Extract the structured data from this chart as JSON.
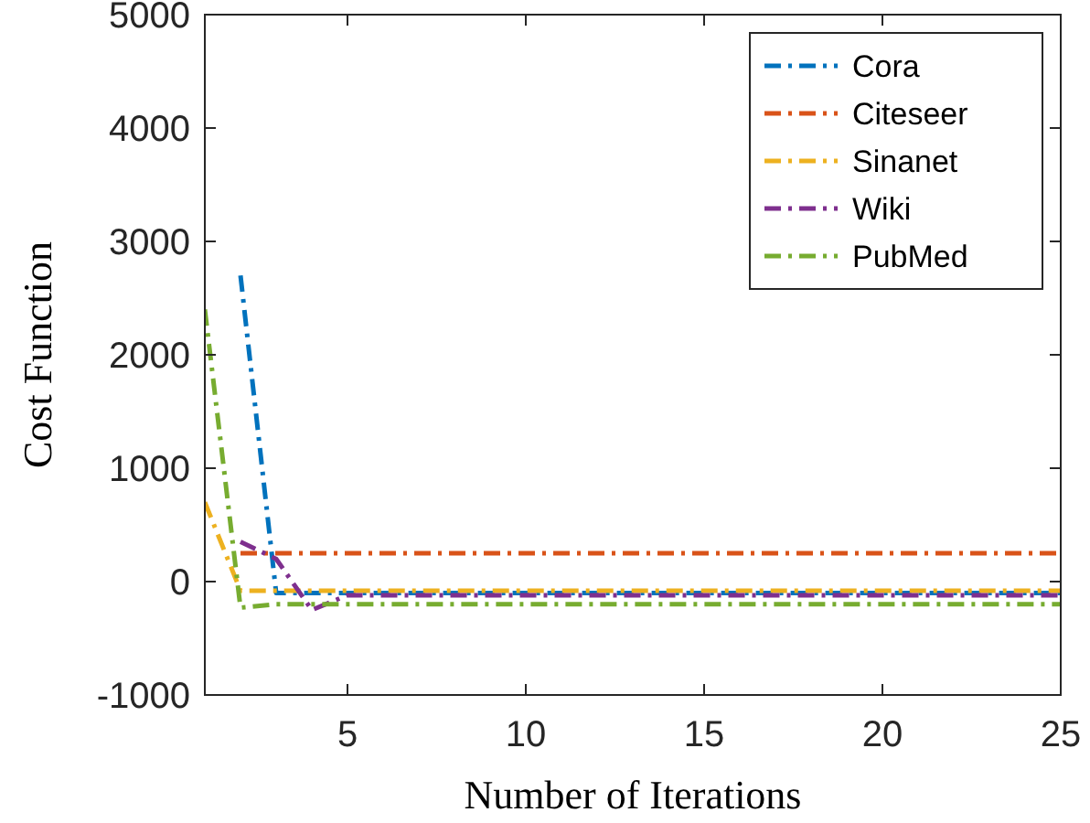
{
  "chart_data": {
    "type": "line",
    "xlabel": "Number of Iterations",
    "ylabel": "Cost Function",
    "x": [
      1,
      2,
      3,
      4,
      5,
      6,
      7,
      8,
      9,
      10,
      11,
      12,
      13,
      14,
      15,
      16,
      17,
      18,
      19,
      20,
      21,
      22,
      23,
      24,
      25
    ],
    "xlim": [
      1,
      25
    ],
    "xticks": [
      5,
      10,
      15,
      20,
      25
    ],
    "ylim": [
      -1000,
      5000
    ],
    "yticks": [
      -1000,
      0,
      1000,
      2000,
      3000,
      4000,
      5000
    ],
    "legend": "top right",
    "line_style": "dashed",
    "grid": false,
    "series": [
      {
        "name": "Cora",
        "color": "#0072bd",
        "values": [
          null,
          2700,
          -100,
          -100,
          -100,
          -100,
          -100,
          -100,
          -100,
          -100,
          -100,
          -100,
          -100,
          -100,
          -100,
          -100,
          -100,
          -100,
          -100,
          -100,
          -100,
          -100,
          -100,
          -100,
          -100
        ]
      },
      {
        "name": "Citeseer",
        "color": "#d95319",
        "values": [
          null,
          250,
          250,
          250,
          250,
          250,
          250,
          250,
          250,
          250,
          250,
          250,
          250,
          250,
          250,
          250,
          250,
          250,
          250,
          250,
          250,
          250,
          250,
          250,
          250
        ]
      },
      {
        "name": "Sinanet",
        "color": "#edb120",
        "values": [
          700,
          -80,
          -80,
          -80,
          -80,
          -80,
          -80,
          -80,
          -80,
          -80,
          -80,
          -80,
          -80,
          -80,
          -80,
          -80,
          -80,
          -80,
          -80,
          -80,
          -80,
          -80,
          -80,
          -80,
          -80
        ]
      },
      {
        "name": "Wiki",
        "color": "#7e2f8e",
        "values": [
          null,
          350,
          200,
          -250,
          -120,
          -120,
          -120,
          -120,
          -120,
          -120,
          -120,
          -120,
          -120,
          -120,
          -120,
          -120,
          -120,
          -120,
          -120,
          -120,
          -120,
          -120,
          -120,
          -120,
          -120
        ]
      },
      {
        "name": "PubMed",
        "color": "#77ac30",
        "values": [
          2400,
          -230,
          -200,
          -200,
          -200,
          -200,
          -200,
          -200,
          -200,
          -200,
          -200,
          -200,
          -200,
          -200,
          -200,
          -200,
          -200,
          -200,
          -200,
          -200,
          -200,
          -200,
          -200,
          -200,
          -200
        ]
      }
    ]
  }
}
